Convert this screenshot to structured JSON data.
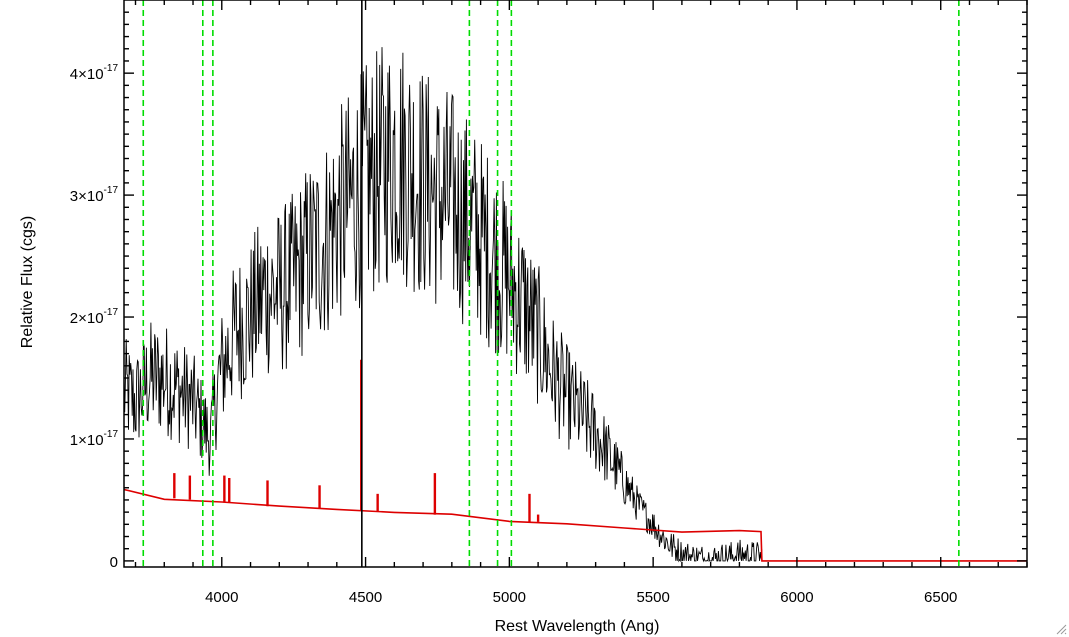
{
  "chart_data": {
    "type": "line",
    "title": "",
    "xlabel": "Rest Wavelength (Ang)",
    "ylabel": "Relative Flux (cgs)",
    "xlim": [
      3660,
      6800
    ],
    "ylim": [
      -5e-19,
      4.6e-17
    ],
    "grid": false,
    "legend": "none",
    "x_ticks": [
      {
        "value": 4000,
        "label": "4000"
      },
      {
        "value": 4500,
        "label": "4500"
      },
      {
        "value": 5000,
        "label": "5000"
      },
      {
        "value": 5500,
        "label": "5500"
      },
      {
        "value": 6000,
        "label": "6000"
      },
      {
        "value": 6500,
        "label": "6500"
      }
    ],
    "y_ticks": [
      {
        "value": 0,
        "mantissa": "0",
        "exponent": ""
      },
      {
        "value": 1e-17,
        "mantissa": "1×10",
        "exponent": "-17"
      },
      {
        "value": 2e-17,
        "mantissa": "2×10",
        "exponent": "-17"
      },
      {
        "value": 3e-17,
        "mantissa": "3×10",
        "exponent": "-17"
      },
      {
        "value": 4e-17,
        "mantissa": "4×10",
        "exponent": "-17"
      }
    ],
    "reference_lines_x": [
      3727,
      3934,
      3969,
      4861,
      4959,
      5007,
      6563
    ],
    "series": [
      {
        "color": "#000000",
        "style": "noisy",
        "x": [
          3660,
          3700,
          3750,
          3800,
          3850,
          3900,
          3940,
          3960,
          3990,
          4050,
          4100,
          4150,
          4200,
          4250,
          4300,
          4350,
          4400,
          4450,
          4500,
          4550,
          4600,
          4650,
          4700,
          4750,
          4800,
          4850,
          4900,
          4950,
          5000,
          5050,
          5100,
          5150,
          5200,
          5250,
          5300,
          5350,
          5400,
          5450,
          5500,
          5550,
          5600,
          5650,
          5700,
          5750,
          5800,
          5850,
          5880
        ],
        "y": [
          1.4e-17,
          1.3e-17,
          1.5e-17,
          1.5e-17,
          1.4e-17,
          1.3e-17,
          1.1e-17,
          1e-17,
          1.5e-17,
          1.9e-17,
          2e-17,
          2.2e-17,
          2.2e-17,
          2.3e-17,
          2.5e-17,
          2.6e-17,
          2.8e-17,
          2.95e-17,
          3.1e-17,
          3.2e-17,
          3.35e-17,
          3.25e-17,
          3.1e-17,
          3e-17,
          2.95e-17,
          2.8e-17,
          2.65e-17,
          2.5e-17,
          2.3e-17,
          2.1e-17,
          1.85e-17,
          1.55e-17,
          1.35e-17,
          1.2e-17,
          1.05e-17,
          8.5e-18,
          6.5e-18,
          4.5e-18,
          3e-18,
          1.5e-18,
          5e-19,
          2e-19,
          1e-19,
          3e-19,
          5e-19,
          4e-19,
          3e-19
        ]
      },
      {
        "color": "#dd0000",
        "style": "line",
        "x": [
          3660,
          3800,
          4000,
          4200,
          4400,
          4600,
          4800,
          5000,
          5200,
          5400,
          5600,
          5800,
          5875,
          5878,
          6800
        ],
        "y": [
          5.8e-18,
          5.2e-18,
          4.8e-18,
          4.4e-18,
          4.2e-18,
          4e-18,
          3.7e-18,
          3.3e-18,
          3.1e-18,
          2.8e-18,
          2.5e-18,
          2.4e-18,
          2.4e-18,
          0.0,
          0.0
        ]
      }
    ],
    "emission_spikes": [
      {
        "x": 3835,
        "y": 7.2e-18
      },
      {
        "x": 3889,
        "y": 7e-18
      },
      {
        "x": 4009,
        "y": 7e-18
      },
      {
        "x": 4026,
        "y": 6.8e-18
      },
      {
        "x": 4159,
        "y": 6.6e-18
      },
      {
        "x": 4340,
        "y": 6.2e-18
      },
      {
        "x": 4485,
        "y": 1.65e-17
      },
      {
        "x": 4542,
        "y": 5.5e-18
      },
      {
        "x": 4741,
        "y": 7.2e-18
      },
      {
        "x": 5070,
        "y": 5.5e-18
      },
      {
        "x": 5100,
        "y": 3.8e-18
      }
    ],
    "vertical_marker_x": 4487
  },
  "colors": {
    "reference_line": "#00dd00",
    "axis": "#000000"
  }
}
